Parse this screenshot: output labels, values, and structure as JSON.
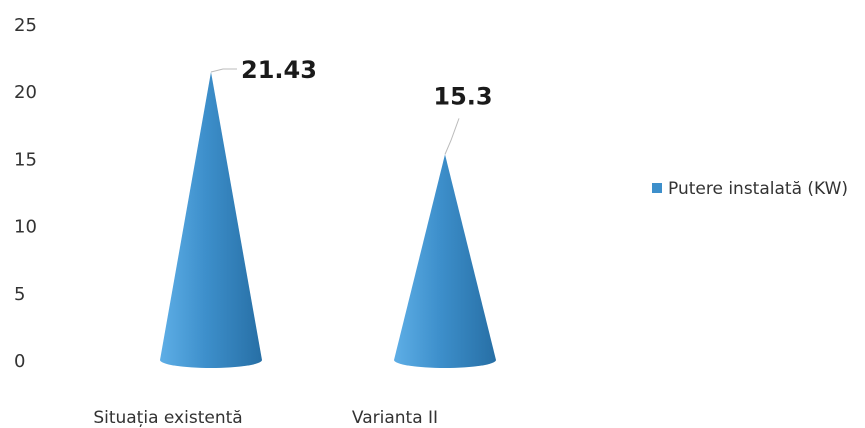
{
  "chart_data": {
    "type": "bar",
    "shape": "cone",
    "categories": [
      "Situația existentă",
      "Varianta II"
    ],
    "series": [
      {
        "name": "Putere instalată (KW)",
        "values": [
          21.43,
          15.3
        ],
        "data_labels": [
          "21.43",
          "15.3"
        ]
      }
    ],
    "ylim": [
      0,
      25
    ],
    "yticks": [
      0,
      5,
      10,
      15,
      20,
      25
    ],
    "grid": false,
    "legend_position": "right",
    "colors": {
      "series": "#3d8fcb",
      "series_light": "#5eaee6",
      "series_dark": "#276fa5",
      "text": "#333333"
    }
  }
}
